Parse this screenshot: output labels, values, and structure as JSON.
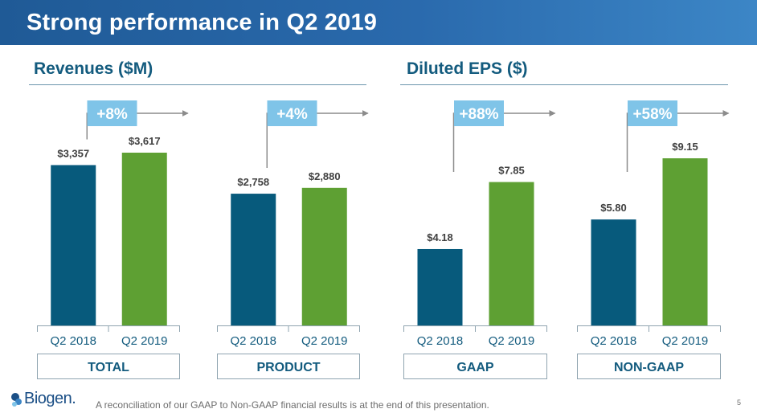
{
  "header": {
    "title": "Strong performance in Q2 2019"
  },
  "sections": [
    {
      "title": "Revenues ($M)"
    },
    {
      "title": "Diluted EPS ($)"
    }
  ],
  "colors": {
    "q2_2018": "#075a7c",
    "q2_2019": "#5ea033",
    "callout": "#7fc4e8",
    "arrow": "#8c8c8c",
    "label_border": "#8fa4b0"
  },
  "chart_data": [
    {
      "type": "bar",
      "group_label": "TOTAL",
      "categories": [
        "Q2 2018",
        "Q2 2019"
      ],
      "values": [
        3357,
        3617
      ],
      "data_labels": [
        "$3,357",
        "$3,617"
      ],
      "change_label": "+8%"
    },
    {
      "type": "bar",
      "group_label": "PRODUCT",
      "categories": [
        "Q2 2018",
        "Q2 2019"
      ],
      "values": [
        2758,
        2880
      ],
      "data_labels": [
        "$2,758",
        "$2,880"
      ],
      "change_label": "+4%"
    },
    {
      "type": "bar",
      "group_label": "GAAP",
      "categories": [
        "Q2 2018",
        "Q2 2019"
      ],
      "values": [
        4.18,
        7.85
      ],
      "data_labels": [
        "$4.18",
        "$7.85"
      ],
      "change_label": "+88%"
    },
    {
      "type": "bar",
      "group_label": "NON-GAAP",
      "categories": [
        "Q2 2018",
        "Q2 2019"
      ],
      "values": [
        5.8,
        9.15
      ],
      "data_labels": [
        "$5.80",
        "$9.15"
      ],
      "change_label": "+58%"
    }
  ],
  "footer": {
    "note": "A reconciliation of our GAAP to Non-GAAP financial results is at the end of this presentation.",
    "page": "5",
    "logo_text": "Biogen."
  }
}
